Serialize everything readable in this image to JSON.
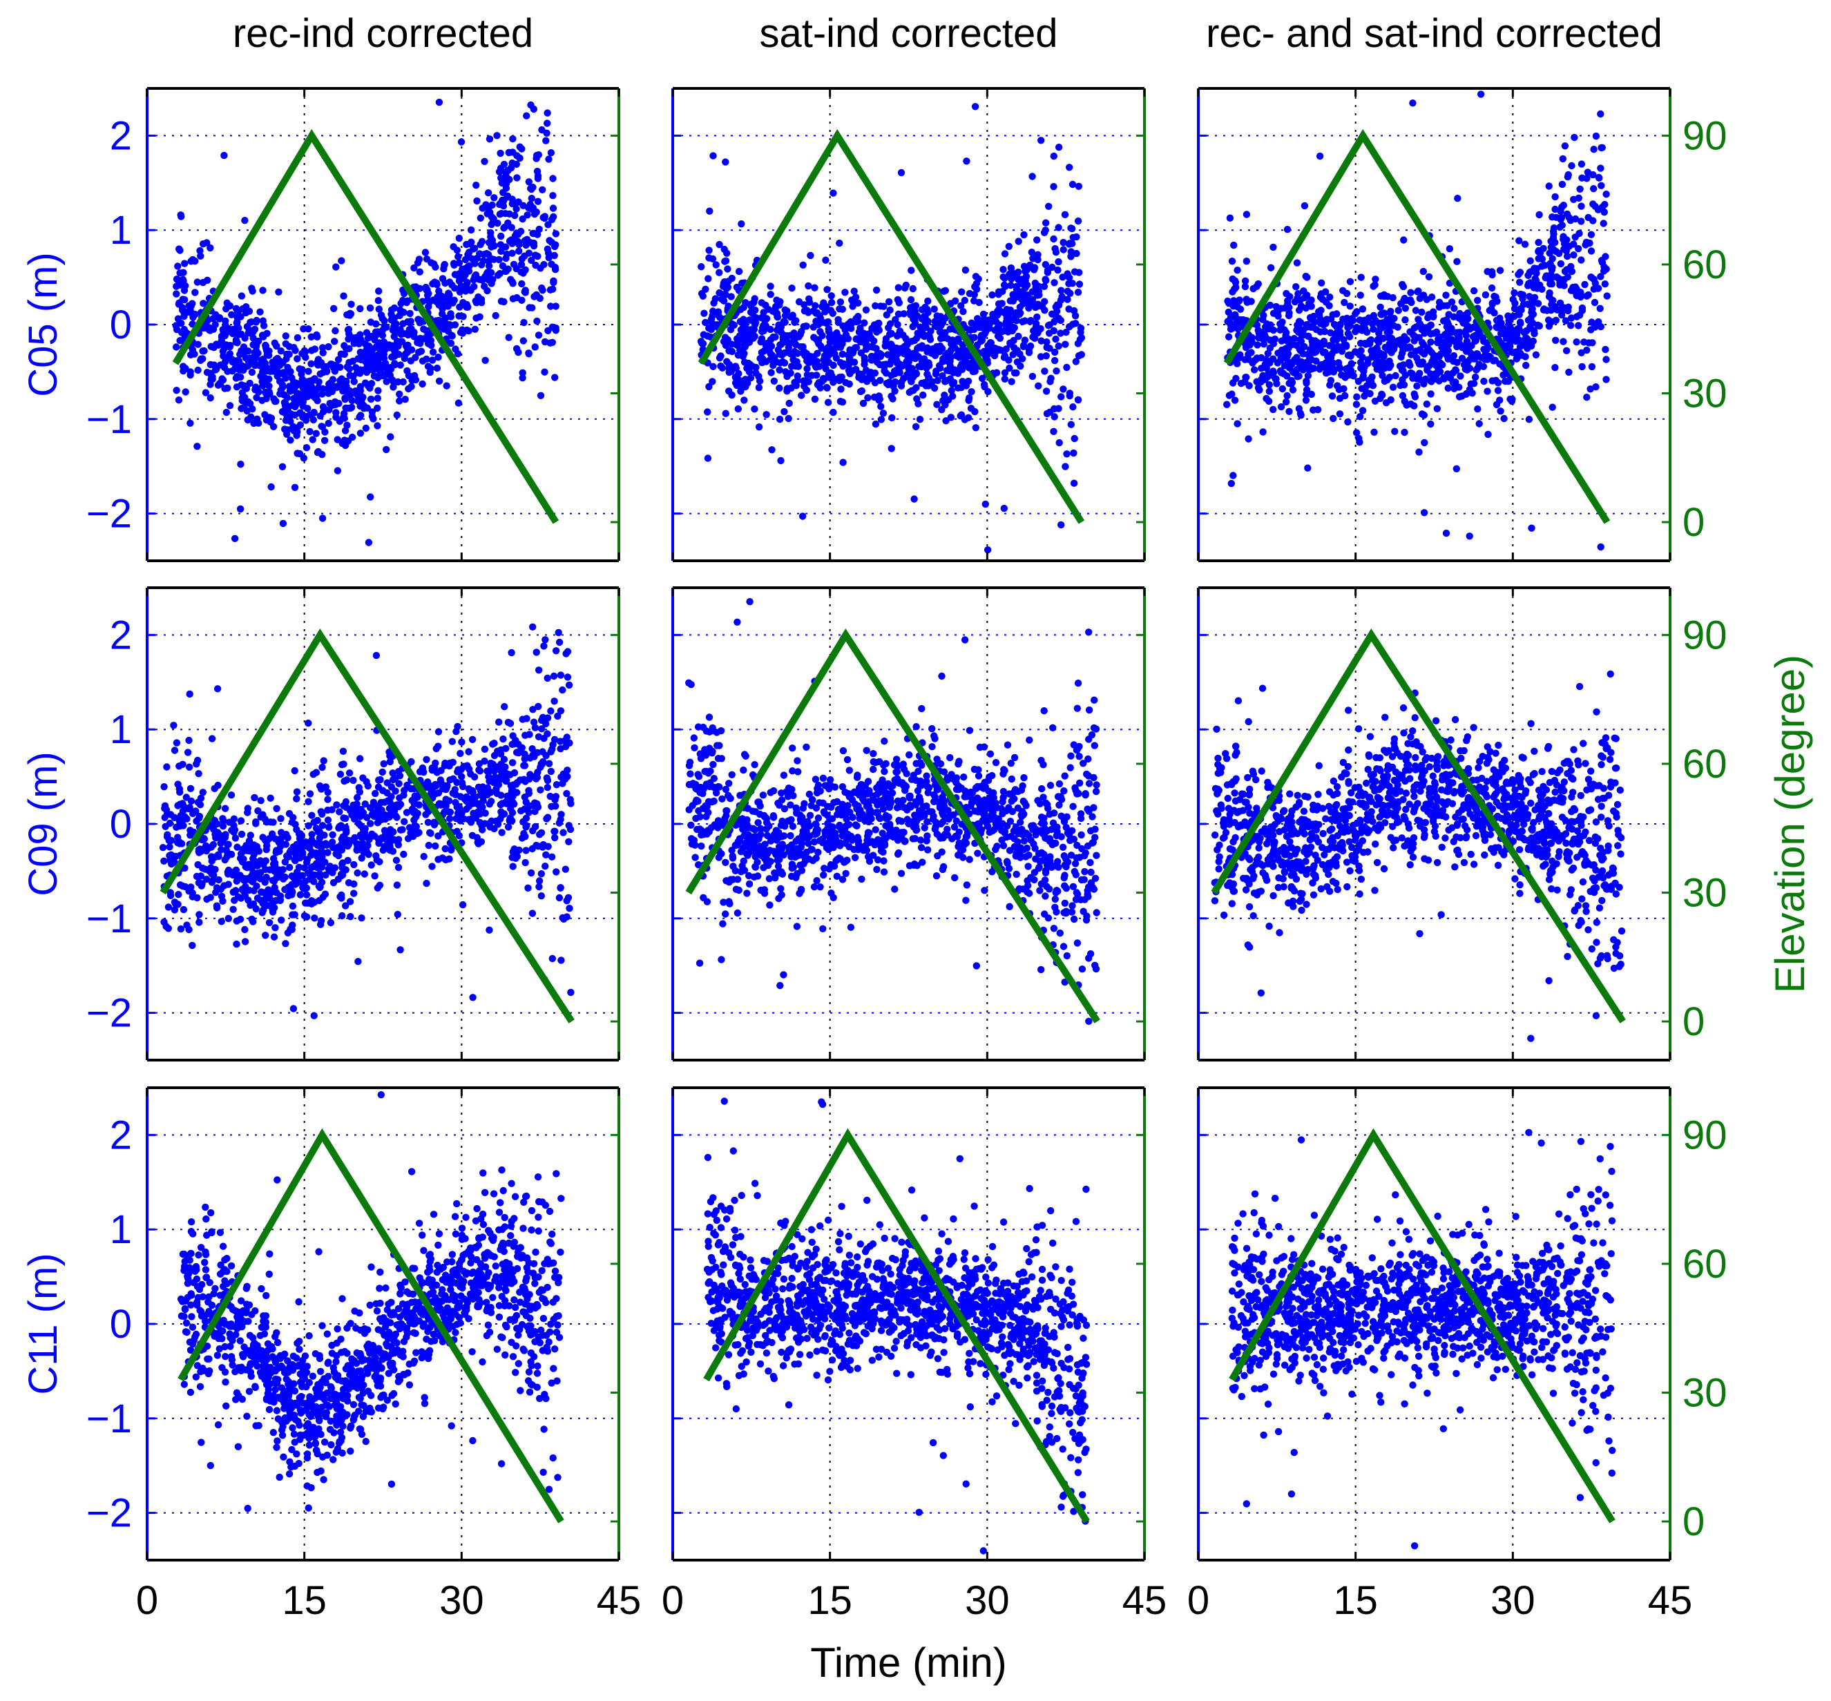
{
  "figure": {
    "xlabel": "Time (min)",
    "right_ylabel": "Elevation (degree)"
  },
  "colors": {
    "residual": "#0000ff",
    "elevation": "#0a7a0a",
    "frame": "#000000",
    "grid": "#0000ff"
  },
  "chart_data": {
    "type": "scatter",
    "layout": "3x3 grid of subplots with shared axes",
    "column_titles": [
      "rec-ind corrected",
      "sat-ind corrected",
      "rec- and sat-ind corrected"
    ],
    "row_labels": [
      "C05 (m)",
      "C09 (m)",
      "C11 (m)"
    ],
    "xlabel": "Time (min)",
    "xlim": [
      0,
      45
    ],
    "xticks": [
      0,
      15,
      30,
      45
    ],
    "ylim": [
      -2.5,
      2.5
    ],
    "yticks": [
      -2,
      -1,
      0,
      1,
      2
    ],
    "y2label": "Elevation (degree)",
    "y2lim": [
      -9,
      101
    ],
    "y2ticks": [
      0,
      30,
      60,
      90
    ],
    "grid": "dotted",
    "series": [
      {
        "name": "residuals",
        "axis": "left",
        "style": "points"
      },
      {
        "name": "elevation",
        "axis": "right",
        "style": "line"
      }
    ],
    "elevation_profiles": [
      {
        "row": "C05 (m)",
        "x": [
          2.7,
          15.7,
          39
        ],
        "y": [
          37,
          90,
          0
        ]
      },
      {
        "row": "C09 (m)",
        "x": [
          1.5,
          16.5,
          40.5
        ],
        "y": [
          30,
          90,
          0
        ]
      },
      {
        "row": "C11 (m)",
        "x": [
          3.2,
          16.7,
          39.5
        ],
        "y": [
          33,
          90,
          0
        ]
      }
    ],
    "residual_trends": [
      {
        "row": "C05 (m)",
        "column": "rec-ind corrected",
        "x": [
          2.7,
          8,
          15,
          20,
          25,
          30,
          34,
          39
        ],
        "y": [
          0.2,
          -0.3,
          -0.75,
          -0.5,
          -0.1,
          0.3,
          1.0,
          1.0
        ]
      },
      {
        "row": "C05 (m)",
        "column": "sat-ind corrected",
        "x": [
          2.7,
          8,
          15,
          20,
          25,
          30,
          34,
          39
        ],
        "y": [
          0.1,
          -0.2,
          -0.2,
          -0.3,
          -0.3,
          -0.2,
          0.3,
          0.1
        ]
      },
      {
        "row": "C05 (m)",
        "column": "rec- and sat-ind corrected",
        "x": [
          2.7,
          8,
          15,
          20,
          25,
          30,
          34,
          39
        ],
        "y": [
          -0.1,
          -0.2,
          -0.25,
          -0.25,
          -0.25,
          -0.15,
          0.6,
          0.6
        ]
      },
      {
        "row": "C09 (m)",
        "column": "rec-ind corrected",
        "x": [
          1.5,
          6,
          12,
          18,
          24,
          30,
          36,
          40.5
        ],
        "y": [
          -0.1,
          -0.3,
          -0.55,
          -0.2,
          0.15,
          0.3,
          0.5,
          0.2
        ]
      },
      {
        "row": "C09 (m)",
        "column": "sat-ind corrected",
        "x": [
          1.5,
          6,
          12,
          18,
          24,
          30,
          36,
          40.5
        ],
        "y": [
          0.5,
          -0.1,
          -0.2,
          0.1,
          0.2,
          0.1,
          -0.3,
          -0.5
        ]
      },
      {
        "row": "C09 (m)",
        "column": "rec- and sat-ind corrected",
        "x": [
          1.5,
          6,
          12,
          18,
          24,
          30,
          36,
          40.5
        ],
        "y": [
          0.1,
          -0.3,
          -0.2,
          0.3,
          0.35,
          0.1,
          -0.1,
          -0.2
        ]
      },
      {
        "row": "C11 (m)",
        "column": "rec-ind corrected",
        "x": [
          3.2,
          8,
          12,
          16,
          20,
          25,
          30,
          35,
          39.5
        ],
        "y": [
          0.4,
          0.0,
          -0.6,
          -1.0,
          -0.6,
          0.0,
          0.4,
          0.6,
          0.0
        ]
      },
      {
        "row": "C11 (m)",
        "column": "sat-ind corrected",
        "x": [
          3.2,
          8,
          15,
          20,
          25,
          30,
          35,
          39.5
        ],
        "y": [
          0.4,
          0.2,
          0.2,
          0.3,
          0.2,
          0.1,
          0.0,
          -0.8
        ]
      },
      {
        "row": "C11 (m)",
        "column": "rec- and sat-ind corrected",
        "x": [
          3.2,
          8,
          15,
          20,
          25,
          30,
          35,
          39.5
        ],
        "y": [
          0.1,
          0.1,
          0.15,
          0.2,
          0.2,
          0.1,
          0.3,
          0.1
        ]
      }
    ]
  }
}
